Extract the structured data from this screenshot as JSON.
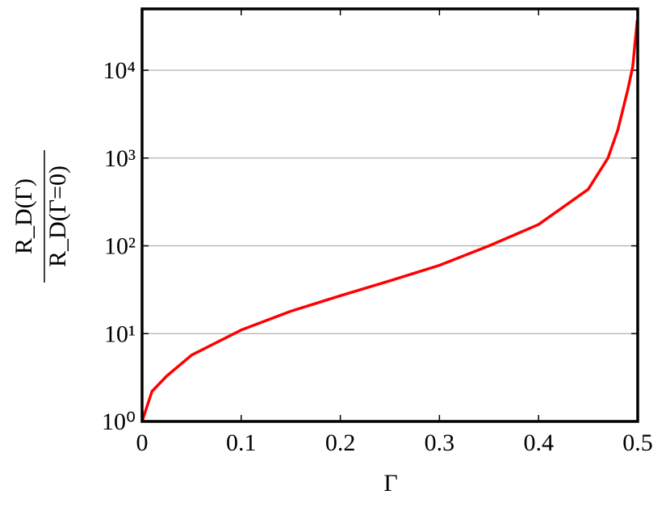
{
  "chart_data": {
    "type": "line",
    "xlabel": "Γ",
    "ylabel": {
      "numerator": "R_D(Γ)",
      "denominator": "R_D(Γ=0)"
    },
    "x": [
      0,
      0.01,
      0.025,
      0.05,
      0.1,
      0.15,
      0.2,
      0.25,
      0.3,
      0.35,
      0.4,
      0.45,
      0.47,
      0.48,
      0.49,
      0.495,
      0.4995
    ],
    "series": [
      {
        "color": "#ff0000",
        "values": [
          1,
          2.2,
          3.3,
          5.7,
          11,
          18,
          27,
          40,
          60,
          100,
          175,
          440,
          1000,
          2100,
          6000,
          11000,
          37000
        ]
      }
    ],
    "xlim": [
      0,
      0.5
    ],
    "xticks": [
      0,
      0.1,
      0.2,
      0.3,
      0.4,
      0.5
    ],
    "ylim": [
      1,
      50000
    ],
    "yticks": [
      {
        "value": 1,
        "label": "10⁰"
      },
      {
        "value": 10,
        "label": "10¹"
      },
      {
        "value": 100,
        "label": "10²"
      },
      {
        "value": 1000,
        "label": "10³"
      },
      {
        "value": 10000,
        "label": "10⁴"
      }
    ],
    "log_y": true,
    "grid": true
  }
}
